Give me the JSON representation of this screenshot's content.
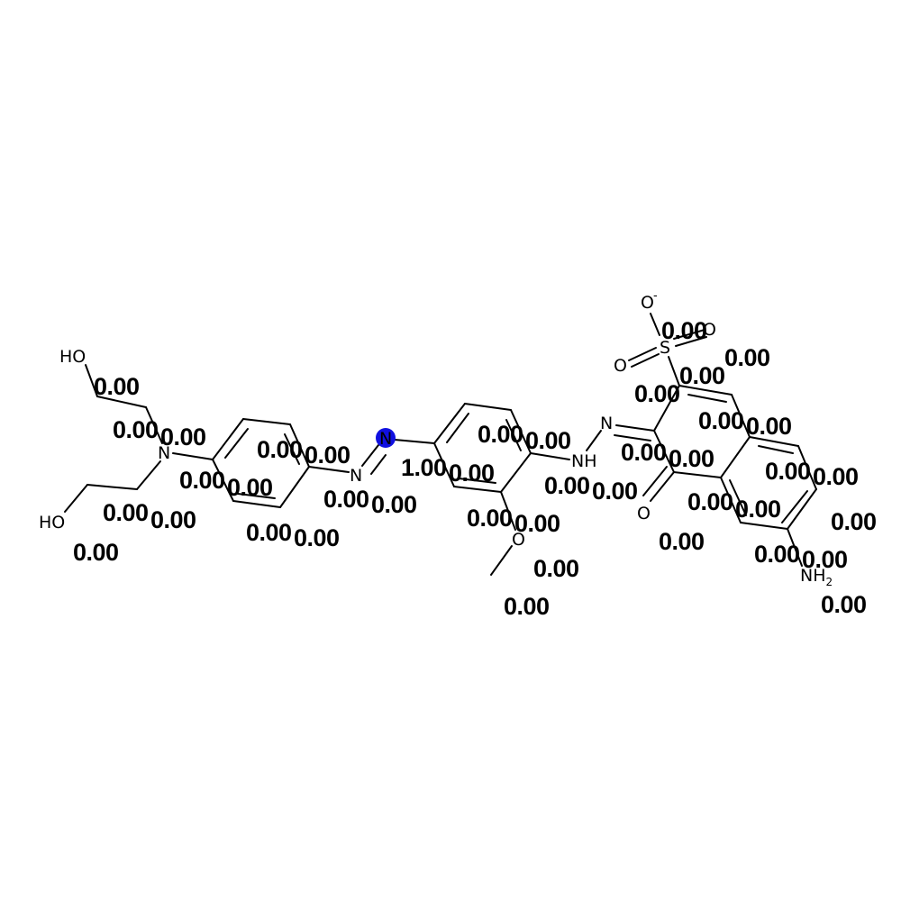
{
  "diagram": {
    "highlight_color": "#1010e0",
    "atoms": [
      {
        "label": "HO"
      },
      {
        "label": "HO"
      },
      {
        "label": "N"
      },
      {
        "label": "N"
      },
      {
        "label": "N"
      },
      {
        "label": "NH"
      },
      {
        "label": "N"
      },
      {
        "label": "O"
      },
      {
        "label": "O"
      },
      {
        "label": "S"
      },
      {
        "label": "O"
      },
      {
        "label": "O"
      },
      {
        "label": "O"
      },
      {
        "label": "NH",
        "subscript": "2"
      }
    ],
    "charge_label": "-",
    "values": [
      "0.00",
      "0.00",
      "0.00",
      "0.00",
      "0.00",
      "0.00",
      "0.00",
      "0.00",
      "0.00",
      "0.00",
      "0.00",
      "0.00",
      "0.00",
      "0.00",
      "0.00",
      "1.00",
      "0.00",
      "0.00",
      "0.00",
      "0.00",
      "0.00",
      "0.00",
      "0.00",
      "0.00",
      "0.00",
      "0.00",
      "0.00",
      "0.00",
      "0.00",
      "0.00",
      "0.00",
      "0.00",
      "0.00",
      "0.00",
      "0.00",
      "0.00",
      "0.00",
      "0.00",
      "0.00",
      "0.00",
      "0.00",
      "0.00",
      "0.00",
      "0.00",
      "0.00",
      "0.00"
    ]
  }
}
